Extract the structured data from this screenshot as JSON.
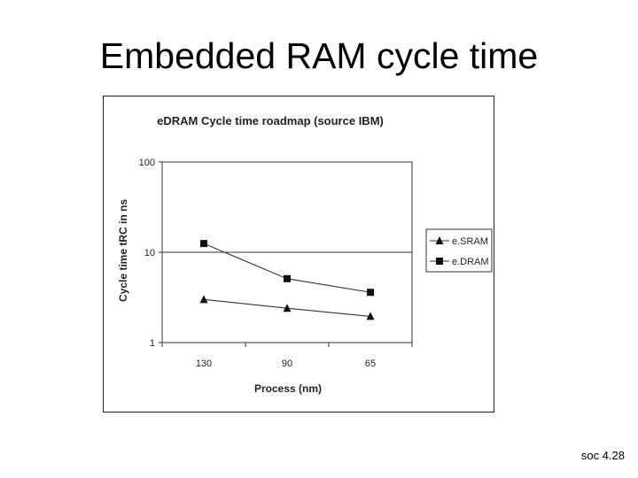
{
  "slide": {
    "title": "Embedded RAM cycle time",
    "footer": "soc 4.28"
  },
  "chart_data": {
    "type": "line",
    "title": "eDRAM Cycle time roadmap (source IBM)",
    "xlabel": "Process (nm)",
    "ylabel": "Cycle time tRC in ns",
    "categories": [
      "130",
      "90",
      "65"
    ],
    "yscale": "log",
    "ylim": [
      1,
      100
    ],
    "yticks": [
      "1",
      "10",
      "100"
    ],
    "gridlines": "major-y",
    "legend_position": "right",
    "series": [
      {
        "name": "e.SRAM",
        "marker": "triangle",
        "values": [
          3.0,
          2.4,
          1.95
        ]
      },
      {
        "name": "e.DRAM",
        "marker": "square",
        "values": [
          12.5,
          5.1,
          3.6
        ]
      }
    ]
  }
}
